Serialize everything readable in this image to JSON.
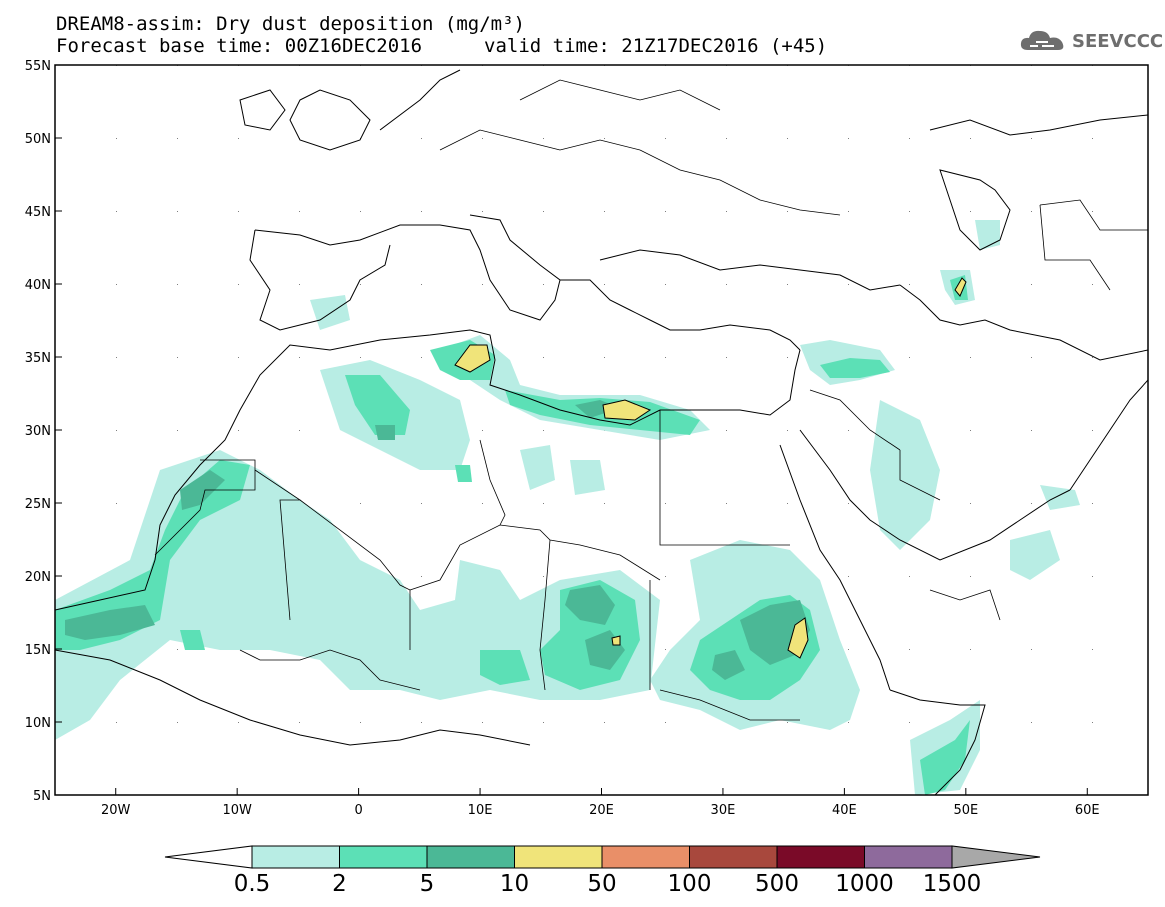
{
  "header": {
    "title_line1": "DREAM8-assim: Dry dust deposition (mg/m³)",
    "title_line2": "Forecast base time: 00Z16DEC2016",
    "valid_time": "valid time: 21Z17DEC2016 (+45)",
    "logo_text": "SEEVCCC",
    "logo_icon": "cloud-icon"
  },
  "map": {
    "lon_range": [
      -25,
      65
    ],
    "lat_range": [
      5,
      55
    ],
    "lat_ticks": [
      {
        "value": 55,
        "label": "55N"
      },
      {
        "value": 50,
        "label": "50N"
      },
      {
        "value": 45,
        "label": "45N"
      },
      {
        "value": 40,
        "label": "40N"
      },
      {
        "value": 35,
        "label": "35N"
      },
      {
        "value": 30,
        "label": "30N"
      },
      {
        "value": 25,
        "label": "25N"
      },
      {
        "value": 20,
        "label": "20N"
      },
      {
        "value": 15,
        "label": "15N"
      },
      {
        "value": 10,
        "label": "10N"
      },
      {
        "value": 5,
        "label": "5N"
      }
    ],
    "lon_ticks": [
      {
        "value": -20,
        "label": "20W"
      },
      {
        "value": -10,
        "label": "10W"
      },
      {
        "value": 0,
        "label": "0"
      },
      {
        "value": 10,
        "label": "10E"
      },
      {
        "value": 20,
        "label": "20E"
      },
      {
        "value": 30,
        "label": "30E"
      },
      {
        "value": 40,
        "label": "40E"
      },
      {
        "value": 50,
        "label": "50E"
      },
      {
        "value": 60,
        "label": "60E"
      }
    ],
    "colors": {
      "level_0_5": "#b8ede4",
      "level_2": "#5ce0b6",
      "level_5": "#4bb896",
      "level_10": "#f0e47a",
      "land_line": "#000000"
    }
  },
  "colorbar": {
    "labels": [
      "0.5",
      "2",
      "5",
      "10",
      "50",
      "100",
      "500",
      "1000",
      "1500"
    ],
    "colors": [
      "#b8ede4",
      "#5ce0b6",
      "#4bb896",
      "#f0e47a",
      "#e98f68",
      "#a8483d",
      "#7a0a28",
      "#8e6a9c"
    ],
    "low_color": "#ffffff",
    "high_color": "#a8a8a8"
  }
}
